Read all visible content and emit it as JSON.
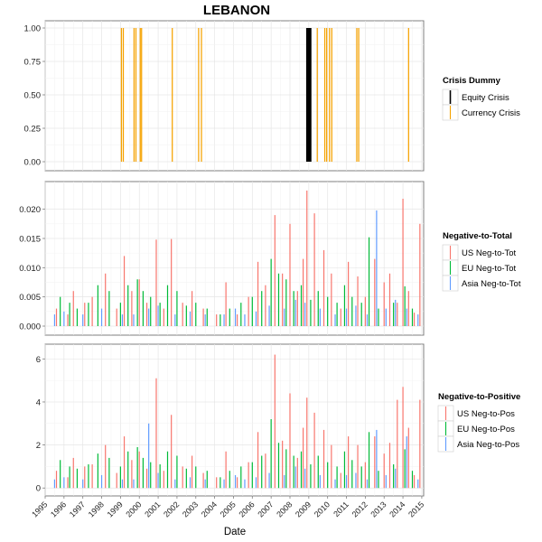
{
  "chart_data": {
    "title": "LEBANON",
    "xlabel": "Date",
    "x_ticks": [
      "1995",
      "1996",
      "1997",
      "1998",
      "1999",
      "2000",
      "2001",
      "2002",
      "2003",
      "2004",
      "2005",
      "2006",
      "2007",
      "2008",
      "2009",
      "2010",
      "2011",
      "2012",
      "2013",
      "2014",
      "2015"
    ],
    "x_range": [
      1995.0,
      2015.1
    ],
    "panels": [
      {
        "id": "crisis",
        "type": "bar",
        "legend_title": "Crisis Dummy",
        "ylim": [
          0,
          1
        ],
        "y_ticks": [
          "0.00",
          "0.25",
          "0.50",
          "0.75",
          "1.00"
        ],
        "y_tick_values": [
          0,
          0.25,
          0.5,
          0.75,
          1.0
        ],
        "grid": true,
        "series": [
          {
            "name": "Equity Crisis",
            "color": "#000000",
            "bar_width": 0.28,
            "x": [
              2009.0
            ],
            "values": [
              1
            ]
          },
          {
            "name": "Currency Crisis",
            "color": "#f5a200",
            "bar_width": 0.06,
            "x": [
              1999.05,
              1999.15,
              1999.72,
              1999.82,
              2000.05,
              2000.12,
              2001.75,
              2003.15,
              2003.3,
              2009.45,
              2009.85,
              2009.95,
              2010.1,
              2010.22,
              2011.55,
              2011.65,
              2014.3
            ],
            "values": [
              1,
              1,
              1,
              1,
              1,
              1,
              1,
              1,
              1,
              1,
              1,
              1,
              1,
              1,
              1,
              1,
              1
            ]
          }
        ],
        "legend_placement": "right"
      },
      {
        "id": "neg_to_tot",
        "type": "bar",
        "legend_title": "Negative-to-Total",
        "ylim": [
          0,
          0.0235
        ],
        "y_ticks": [
          "0.000",
          "0.005",
          "0.010",
          "0.015",
          "0.020"
        ],
        "y_tick_values": [
          0,
          0.005,
          0.01,
          0.015,
          0.02
        ],
        "grid": true,
        "series": [
          {
            "name": "US Neg-to-Tot",
            "color": "#f8766d",
            "bar_width": 0.05,
            "x": [
              1995.6,
              1996.2,
              1996.5,
              1997.1,
              1997.5,
              1998.2,
              1998.8,
              1999.2,
              1999.6,
              2000.0,
              2000.4,
              2000.9,
              2001.3,
              2001.7,
              2002.3,
              2002.8,
              2003.4,
              2004.1,
              2004.6,
              2005.2,
              2005.8,
              2006.3,
              2006.7,
              2007.2,
              2007.6,
              2008.0,
              2008.4,
              2008.7,
              2008.9,
              2009.3,
              2009.8,
              2010.2,
              2010.7,
              2011.1,
              2011.6,
              2012.0,
              2012.5,
              2013.0,
              2013.3,
              2013.7,
              2014.0,
              2014.3,
              2014.6,
              2014.9
            ],
            "values": [
              0.003,
              0.002,
              0.006,
              0.004,
              0.005,
              0.009,
              0.003,
              0.012,
              0.006,
              0.008,
              0.004,
              0.0148,
              0.003,
              0.0149,
              0.004,
              0.006,
              0.003,
              0.002,
              0.0075,
              0.002,
              0.005,
              0.011,
              0.007,
              0.019,
              0.009,
              0.0175,
              0.006,
              0.0115,
              0.0232,
              0.0193,
              0.013,
              0.009,
              0.003,
              0.011,
              0.0085,
              0.005,
              0.0115,
              0.0075,
              0.009,
              0.004,
              0.0218,
              0.006,
              0.0023,
              0.0175
            ]
          },
          {
            "name": "EU Neg-to-Tot",
            "color": "#00ba38",
            "bar_width": 0.05,
            "x": [
              1995.8,
              1996.3,
              1996.7,
              1997.3,
              1997.8,
              1998.4,
              1999.0,
              1999.4,
              1999.9,
              2000.2,
              2000.6,
              2001.1,
              2001.5,
              2002.0,
              2002.5,
              2003.0,
              2003.6,
              2004.3,
              2004.8,
              2005.4,
              2006.0,
              2006.5,
              2007.0,
              2007.4,
              2007.8,
              2008.2,
              2008.6,
              2009.1,
              2009.5,
              2010.0,
              2010.5,
              2010.9,
              2011.3,
              2011.8,
              2012.2,
              2012.7,
              2013.5,
              2014.1,
              2014.5
            ],
            "values": [
              0.005,
              0.004,
              0.003,
              0.004,
              0.007,
              0.006,
              0.004,
              0.007,
              0.008,
              0.006,
              0.005,
              0.004,
              0.007,
              0.006,
              0.0035,
              0.004,
              0.003,
              0.002,
              0.003,
              0.004,
              0.005,
              0.006,
              0.0115,
              0.009,
              0.008,
              0.006,
              0.007,
              0.0045,
              0.006,
              0.005,
              0.004,
              0.007,
              0.005,
              0.004,
              0.0152,
              0.003,
              0.004,
              0.0068,
              0.003
            ]
          },
          {
            "name": "Asia Neg-to-Tot",
            "color": "#619cff",
            "bar_width": 0.05,
            "x": [
              1995.5,
              1996.0,
              1997.0,
              1998.0,
              1999.1,
              1999.7,
              2000.5,
              2001.0,
              2001.9,
              2002.7,
              2003.5,
              2004.5,
              2005.1,
              2005.6,
              2006.2,
              2006.9,
              2007.7,
              2008.3,
              2008.8,
              2009.6,
              2010.4,
              2011.0,
              2011.5,
              2012.1,
              2012.6,
              2013.1,
              2013.6,
              2014.2,
              2014.8
            ],
            "values": [
              0.002,
              0.0025,
              0.002,
              0.003,
              0.002,
              0.002,
              0.003,
              0.0035,
              0.002,
              0.0025,
              0.002,
              0.002,
              0.003,
              0.002,
              0.0025,
              0.0035,
              0.003,
              0.0045,
              0.004,
              0.003,
              0.002,
              0.003,
              0.0035,
              0.002,
              0.0198,
              0.003,
              0.0045,
              0.003,
              0.002
            ]
          }
        ],
        "legend_placement": "right"
      },
      {
        "id": "neg_to_pos",
        "type": "bar",
        "legend_title": "Negative-to-Positive",
        "ylim": [
          -0.2,
          6.35
        ],
        "y_ticks": [
          "0",
          "2",
          "4",
          "6"
        ],
        "y_tick_values": [
          0,
          2,
          4,
          6
        ],
        "grid": true,
        "series": [
          {
            "name": "US Neg-to-Pos",
            "color": "#f8766d",
            "bar_width": 0.05,
            "x": [
              1995.6,
              1996.2,
              1996.5,
              1997.1,
              1997.5,
              1998.2,
              1998.8,
              1999.2,
              1999.6,
              2000.0,
              2000.4,
              2000.9,
              2001.3,
              2001.7,
              2002.3,
              2002.8,
              2003.4,
              2004.1,
              2004.6,
              2005.2,
              2005.8,
              2006.3,
              2006.7,
              2007.2,
              2007.6,
              2008.0,
              2008.4,
              2008.7,
              2008.9,
              2009.3,
              2009.8,
              2010.2,
              2010.7,
              2011.1,
              2011.6,
              2012.0,
              2012.5,
              2013.0,
              2013.3,
              2013.7,
              2014.0,
              2014.3,
              2014.6,
              2014.9
            ],
            "values": [
              0.8,
              0.5,
              1.4,
              1.0,
              1.1,
              2.0,
              0.7,
              2.4,
              1.3,
              1.7,
              0.9,
              5.1,
              0.8,
              3.4,
              1.0,
              1.5,
              0.7,
              0.5,
              1.7,
              0.5,
              1.2,
              2.6,
              1.6,
              6.2,
              2.2,
              4.4,
              1.4,
              2.8,
              4.2,
              3.5,
              2.7,
              2.0,
              0.7,
              2.4,
              2.0,
              1.2,
              2.4,
              1.6,
              2.1,
              4.1,
              4.7,
              2.8,
              0.6,
              4.1
            ]
          },
          {
            "name": "EU Neg-to-Pos",
            "color": "#00ba38",
            "bar_width": 0.05,
            "x": [
              1995.8,
              1996.3,
              1996.7,
              1997.3,
              1997.8,
              1998.4,
              1999.0,
              1999.4,
              1999.9,
              2000.2,
              2000.6,
              2001.1,
              2001.5,
              2002.0,
              2002.5,
              2003.0,
              2003.6,
              2004.3,
              2004.8,
              2005.4,
              2006.0,
              2006.5,
              2007.0,
              2007.4,
              2007.8,
              2008.2,
              2008.6,
              2009.1,
              2009.5,
              2010.0,
              2010.5,
              2010.9,
              2011.3,
              2011.8,
              2012.2,
              2012.7,
              2013.5,
              2014.1,
              2014.5
            ],
            "values": [
              1.3,
              1.0,
              0.9,
              1.1,
              1.6,
              1.4,
              1.0,
              1.7,
              1.9,
              1.4,
              1.2,
              1.1,
              1.7,
              1.5,
              0.9,
              1.0,
              0.8,
              0.5,
              0.8,
              1.0,
              1.2,
              1.5,
              3.2,
              2.1,
              1.8,
              1.5,
              1.7,
              1.1,
              1.5,
              1.2,
              1.0,
              1.7,
              1.3,
              1.0,
              2.6,
              0.8,
              1.1,
              1.8,
              0.8
            ]
          },
          {
            "name": "Asia Neg-to-Pos",
            "color": "#619cff",
            "bar_width": 0.05,
            "x": [
              1995.5,
              1996.0,
              1997.0,
              1998.0,
              1999.1,
              1999.7,
              2000.5,
              2001.0,
              2001.9,
              2002.7,
              2003.5,
              2004.5,
              2005.1,
              2005.6,
              2006.2,
              2006.9,
              2007.7,
              2008.3,
              2008.8,
              2009.6,
              2010.4,
              2011.0,
              2011.5,
              2012.1,
              2012.6,
              2013.1,
              2013.6,
              2014.2,
              2014.8
            ],
            "values": [
              0.4,
              0.5,
              0.4,
              0.6,
              0.4,
              0.4,
              3.0,
              0.7,
              0.4,
              0.5,
              0.4,
              0.4,
              0.6,
              0.4,
              0.5,
              0.7,
              0.6,
              1.0,
              0.9,
              0.6,
              0.4,
              0.6,
              0.7,
              0.4,
              2.7,
              0.6,
              0.9,
              2.4,
              0.4
            ]
          }
        ],
        "legend_placement": "right"
      }
    ]
  }
}
